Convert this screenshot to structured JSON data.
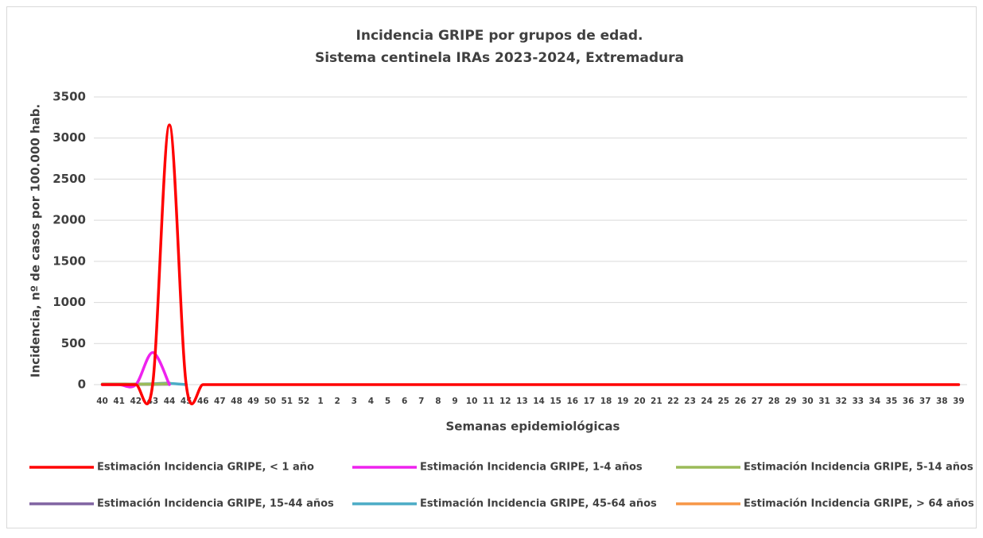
{
  "chart_data": {
    "type": "line",
    "title": "Incidencia GRIPE por grupos de edad.",
    "subtitle": "Sistema centinela IRAs 2023-2024, Extremadura",
    "x_label": "Semanas epidemiológicas",
    "y_label": "Incidencia, nº de casos por 100.000 hab.",
    "categories": [
      "40",
      "41",
      "42",
      "43",
      "44",
      "45",
      "46",
      "47",
      "48",
      "49",
      "50",
      "51",
      "52",
      "1",
      "2",
      "3",
      "4",
      "5",
      "6",
      "7",
      "8",
      "9",
      "10",
      "11",
      "12",
      "13",
      "14",
      "15",
      "16",
      "17",
      "18",
      "19",
      "20",
      "21",
      "22",
      "23",
      "24",
      "25",
      "26",
      "27",
      "28",
      "29",
      "30",
      "31",
      "32",
      "33",
      "34",
      "35",
      "36",
      "37",
      "38",
      "39"
    ],
    "smooth": true,
    "grid": true,
    "legend": "bottom",
    "ylim": [
      0,
      3500
    ],
    "yticks": [
      0,
      500,
      1000,
      1500,
      2000,
      2500,
      3000,
      3500
    ],
    "series": [
      {
        "name": "Estimación Incidencia GRIPE, < 1 año",
        "color": "#ff0000",
        "values": [
          0,
          0,
          0,
          0,
          3160,
          0,
          0,
          0,
          0,
          0,
          0,
          0,
          0,
          0,
          0,
          0,
          0,
          0,
          0,
          0,
          0,
          0,
          0,
          0,
          0,
          0,
          0,
          0,
          0,
          0,
          0,
          0,
          0,
          0,
          0,
          0,
          0,
          0,
          0,
          0,
          0,
          0,
          0,
          0,
          0,
          0,
          0,
          0,
          0,
          0,
          0,
          0
        ]
      },
      {
        "name": "Estimación Incidencia GRIPE, 1-4 años",
        "color": "#ee22ee",
        "values": [
          0,
          0,
          0,
          390,
          0,
          null,
          null,
          null,
          null,
          null,
          null,
          null,
          null,
          null,
          null,
          null,
          null,
          null,
          null,
          null,
          null,
          null,
          null,
          null,
          null,
          null,
          null,
          null,
          null,
          null,
          null,
          null,
          null,
          null,
          null,
          null,
          null,
          null,
          null,
          null,
          null,
          null,
          null,
          null,
          null,
          null,
          null,
          null,
          null,
          null,
          null,
          null
        ]
      },
      {
        "name": "Estimación Incidencia GRIPE, 5-14 años",
        "color": "#9bbb59",
        "values": [
          5,
          5,
          5,
          5,
          10,
          null,
          null,
          null,
          null,
          null,
          null,
          null,
          null,
          null,
          null,
          null,
          null,
          null,
          null,
          null,
          null,
          null,
          null,
          null,
          null,
          null,
          null,
          null,
          null,
          null,
          null,
          null,
          null,
          null,
          null,
          null,
          null,
          null,
          null,
          null,
          null,
          null,
          null,
          null,
          null,
          null,
          null,
          null,
          null,
          null,
          null,
          null
        ]
      },
      {
        "name": "Estimación Incidencia GRIPE, 15-44 años",
        "color": "#8064a2",
        "values": [
          3,
          3,
          3,
          3,
          5,
          null,
          null,
          null,
          null,
          null,
          null,
          null,
          null,
          null,
          null,
          null,
          null,
          null,
          null,
          null,
          null,
          null,
          null,
          null,
          null,
          null,
          null,
          null,
          null,
          null,
          null,
          null,
          null,
          null,
          null,
          null,
          null,
          null,
          null,
          null,
          null,
          null,
          null,
          null,
          null,
          null,
          null,
          null,
          null,
          null,
          null,
          null
        ]
      },
      {
        "name": "Estimación Incidencia GRIPE, 45-64 años",
        "color": "#4bacc6",
        "values": [
          5,
          5,
          5,
          10,
          15,
          0,
          null,
          null,
          null,
          null,
          null,
          null,
          null,
          null,
          null,
          null,
          null,
          null,
          null,
          null,
          null,
          null,
          null,
          null,
          null,
          null,
          null,
          null,
          null,
          null,
          null,
          null,
          null,
          null,
          null,
          null,
          null,
          null,
          null,
          null,
          null,
          null,
          null,
          null,
          null,
          null,
          null,
          null,
          null,
          null,
          null,
          null
        ]
      },
      {
        "name": "Estimación Incidencia GRIPE, > 64 años",
        "color": "#f79646",
        "values": [
          8,
          8,
          8,
          10,
          20,
          null,
          null,
          null,
          null,
          null,
          null,
          null,
          null,
          null,
          null,
          null,
          null,
          null,
          null,
          null,
          null,
          null,
          null,
          null,
          null,
          null,
          null,
          null,
          null,
          null,
          null,
          null,
          null,
          null,
          null,
          null,
          null,
          null,
          null,
          null,
          null,
          null,
          null,
          null,
          null,
          null,
          null,
          null,
          null,
          null,
          null,
          null
        ]
      }
    ]
  }
}
